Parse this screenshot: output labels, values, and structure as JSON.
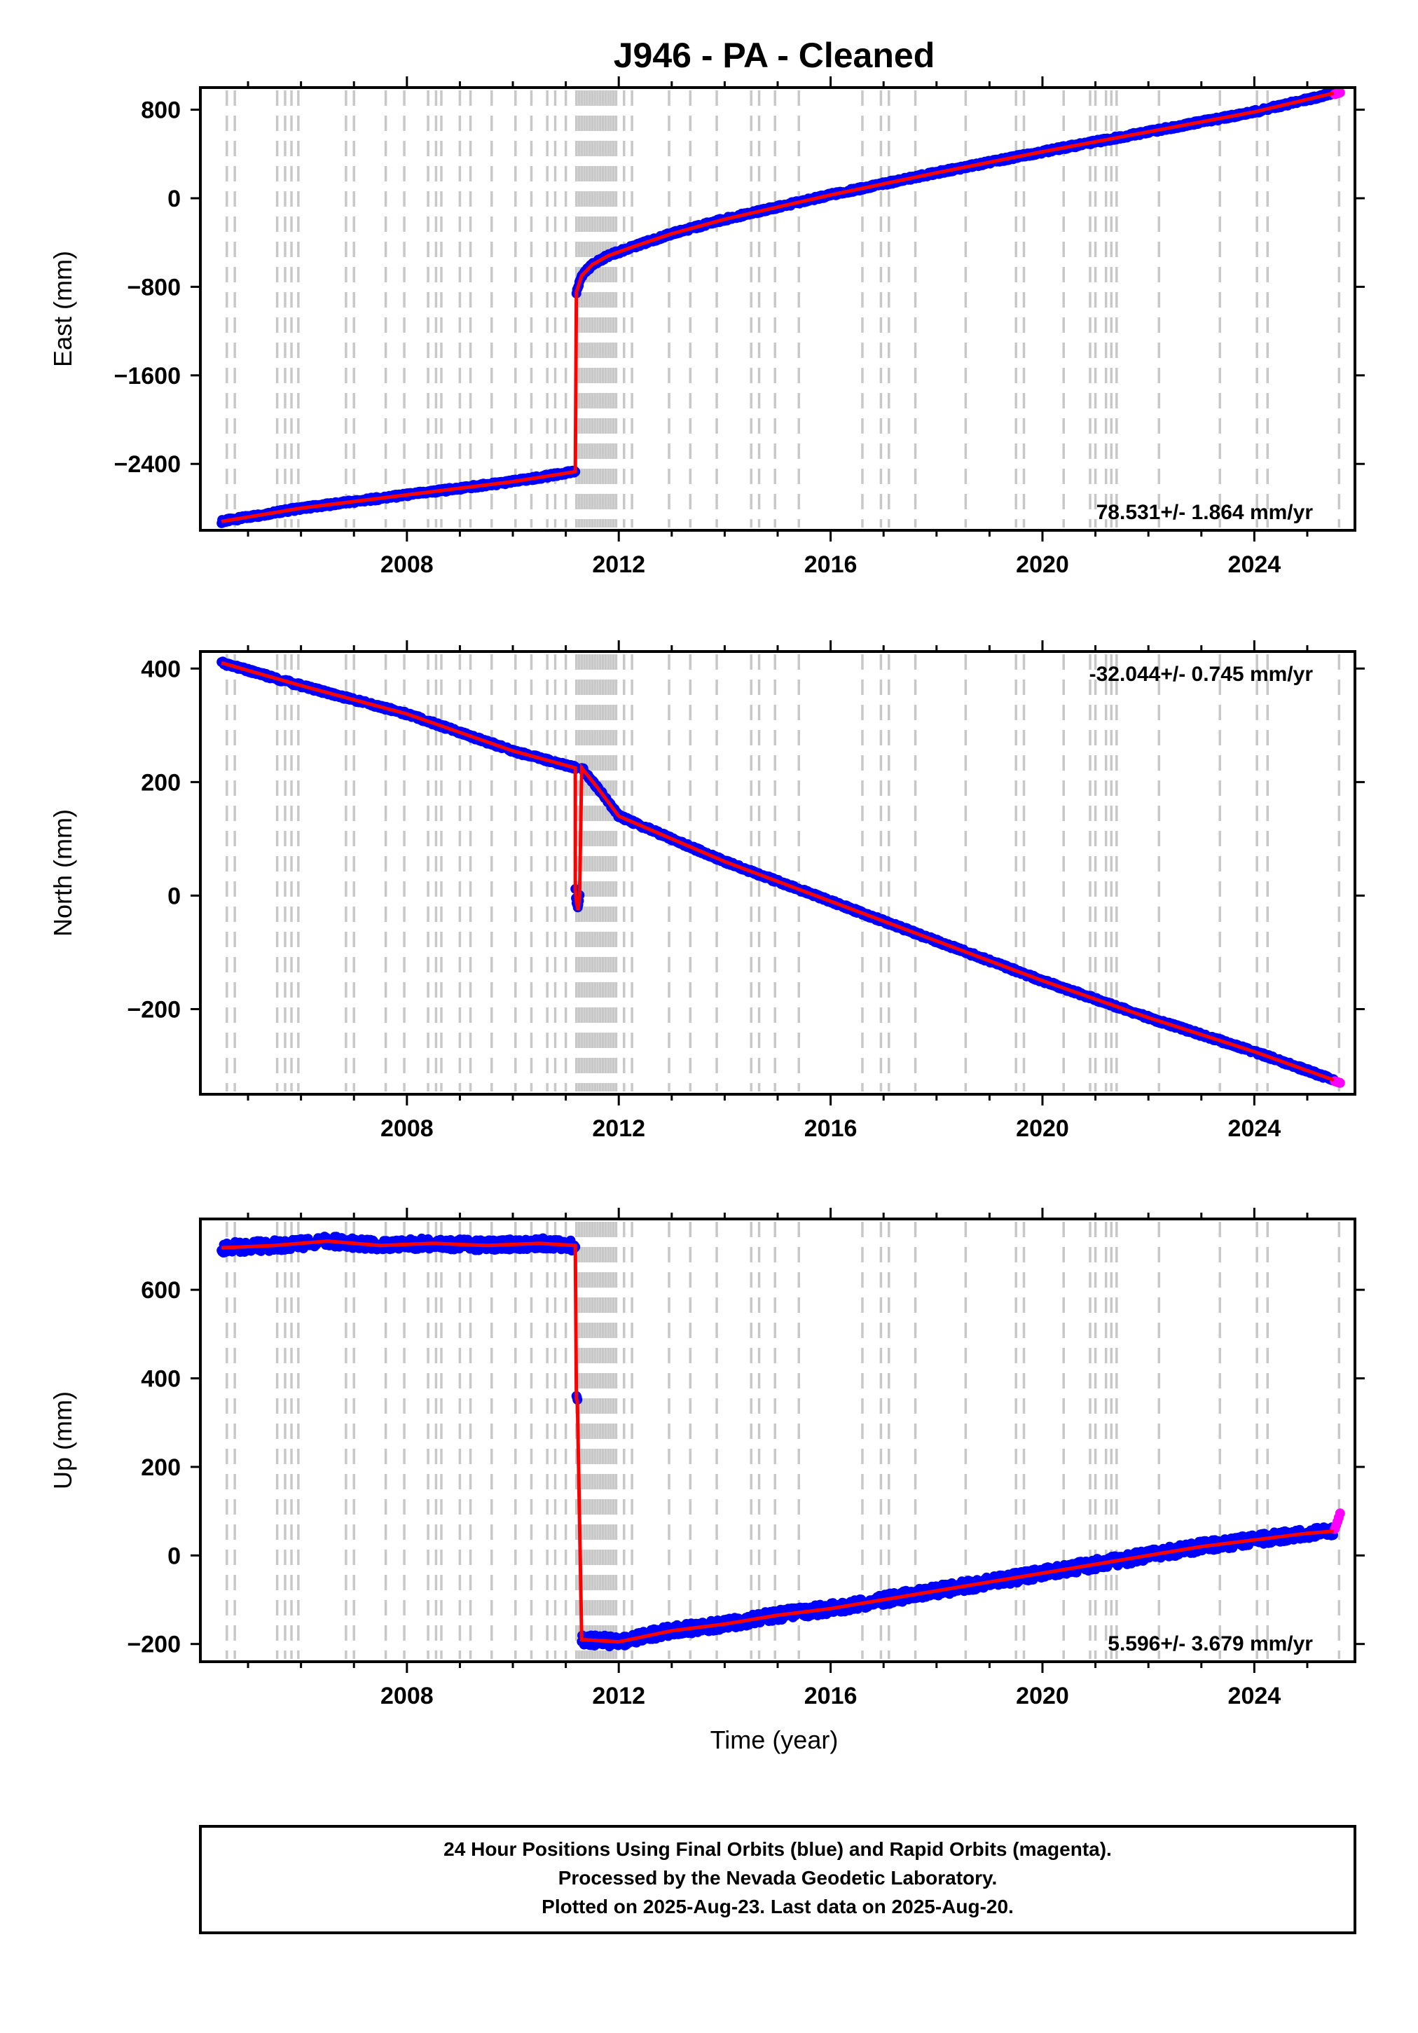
{
  "title": "J946  - PA - Cleaned",
  "x_axis_label": "Time (year)",
  "footer": {
    "line1": "24 Hour Positions Using Final Orbits (blue) and Rapid Orbits (magenta).",
    "line2": "Processed by the Nevada Geodetic Laboratory.",
    "line3": "Plotted on 2025-Aug-23. Last data on 2025-Aug-20."
  },
  "colors": {
    "final_orbits": "#0000ff",
    "rapid_orbits": "#ff00ff",
    "model_fit": "#ff0000",
    "event_lines": "#c8c8c8",
    "axis": "#000000"
  },
  "event_lines_years": [
    2004.6,
    2004.75,
    2005.55,
    2005.7,
    2005.82,
    2005.95,
    2006.85,
    2007.0,
    2007.6,
    2007.95,
    2008.4,
    2008.55,
    2008.65,
    2009.0,
    2009.2,
    2009.6,
    2010.05,
    2010.35,
    2010.65,
    2010.8,
    2011.0,
    2011.2,
    2011.25,
    2011.3,
    2011.35,
    2011.4,
    2011.45,
    2011.5,
    2011.55,
    2011.6,
    2011.65,
    2011.7,
    2011.75,
    2011.8,
    2011.85,
    2011.9,
    2011.95,
    2012.1,
    2012.25,
    2012.95,
    2013.35,
    2013.85,
    2014.5,
    2014.65,
    2014.95,
    2015.4,
    2016.6,
    2016.95,
    2017.1,
    2017.6,
    2018.55,
    2019.5,
    2019.65,
    2020.4,
    2020.9,
    2021.0,
    2021.2,
    2021.3,
    2021.4,
    2022.2,
    2023.35,
    2024.05,
    2024.25,
    2025.6
  ],
  "chart_data": [
    {
      "type": "line",
      "component": "East",
      "ylabel": "East (mm)",
      "xlim": [
        2004.1,
        2025.9
      ],
      "ylim": [
        -3000,
        1000
      ],
      "yticks": [
        -2400,
        -1600,
        -800,
        0,
        800
      ],
      "xticks": [
        2008,
        2012,
        2016,
        2020,
        2024
      ],
      "rate_text": "78.531+/- 1.864 mm/yr",
      "rate_position": "bottom-right",
      "offset_epoch": 2011.19,
      "series": [
        {
          "role": "final_orbits",
          "x": [
            2004.5,
            2006.0,
            2008.0,
            2010.0,
            2011.18
          ],
          "y": [
            -2920,
            -2800,
            -2680,
            -2560,
            -2470
          ]
        },
        {
          "role": "final_orbits",
          "x": [
            2011.2,
            2011.3,
            2011.5,
            2011.8,
            2012.2,
            2013.0,
            2014.0,
            2016.0,
            2018.0,
            2020.0,
            2022.0,
            2024.0,
            2025.5
          ],
          "y": [
            -850,
            -700,
            -600,
            -520,
            -450,
            -320,
            -190,
            30,
            230,
            420,
            600,
            780,
            950
          ]
        },
        {
          "role": "rapid_orbits",
          "x": [
            2025.52,
            2025.62
          ],
          "y": [
            940,
            955
          ]
        }
      ]
    },
    {
      "type": "line",
      "component": "North",
      "ylabel": "North (mm)",
      "xlim": [
        2004.1,
        2025.9
      ],
      "ylim": [
        -350,
        430
      ],
      "yticks": [
        -200,
        0,
        200,
        400
      ],
      "xticks": [
        2008,
        2012,
        2016,
        2020,
        2024
      ],
      "rate_text": "-32.044+/- 0.745 mm/yr",
      "rate_position": "top-right",
      "offset_epoch": 2011.19,
      "series": [
        {
          "role": "final_orbits",
          "x": [
            2004.5,
            2006.0,
            2008.0,
            2010.0,
            2011.18
          ],
          "y": [
            410,
            370,
            320,
            255,
            225
          ]
        },
        {
          "role": "final_orbits",
          "x": [
            2011.18,
            2011.2,
            2011.23,
            2011.26
          ],
          "y": [
            10,
            -10,
            -25,
            0
          ]
        },
        {
          "role": "final_orbits",
          "x": [
            2011.3,
            2011.6,
            2012.0,
            2013.0,
            2014.0,
            2016.0,
            2018.0,
            2020.0,
            2022.0,
            2024.0,
            2025.5
          ],
          "y": [
            225,
            190,
            140,
            100,
            60,
            -10,
            -80,
            -150,
            -215,
            -275,
            -325
          ]
        },
        {
          "role": "rapid_orbits",
          "x": [
            2025.52,
            2025.62
          ],
          "y": [
            -327,
            -330
          ]
        }
      ]
    },
    {
      "type": "line",
      "component": "Up",
      "ylabel": "Up (mm)",
      "xlim": [
        2004.1,
        2025.9
      ],
      "ylim": [
        -240,
        760
      ],
      "yticks": [
        -200,
        0,
        200,
        400,
        600
      ],
      "xticks": [
        2008,
        2012,
        2016,
        2020,
        2024
      ],
      "rate_text": "5.596+/- 3.679 mm/yr",
      "rate_position": "bottom-right",
      "offset_epoch": 2011.19,
      "series": [
        {
          "role": "final_orbits",
          "x": [
            2004.5,
            2005.5,
            2006.5,
            2007.5,
            2008.5,
            2009.5,
            2010.5,
            2011.18
          ],
          "y": [
            695,
            700,
            710,
            700,
            705,
            700,
            705,
            700
          ]
        },
        {
          "role": "final_orbits",
          "x": [
            2011.2,
            2011.22
          ],
          "y": [
            355,
            345
          ]
        },
        {
          "role": "final_orbits",
          "x": [
            2011.3,
            2012.0,
            2013.0,
            2014.0,
            2015.0,
            2016.0,
            2017.0,
            2018.0,
            2019.0,
            2020.0,
            2021.0,
            2022.0,
            2023.0,
            2024.0,
            2025.0,
            2025.5
          ],
          "y": [
            -190,
            -195,
            -170,
            -155,
            -135,
            -120,
            -100,
            -80,
            -60,
            -40,
            -20,
            0,
            20,
            35,
            50,
            55
          ]
        },
        {
          "role": "rapid_orbits",
          "x": [
            2025.52,
            2025.58,
            2025.62
          ],
          "y": [
            60,
            80,
            95
          ]
        }
      ]
    }
  ]
}
